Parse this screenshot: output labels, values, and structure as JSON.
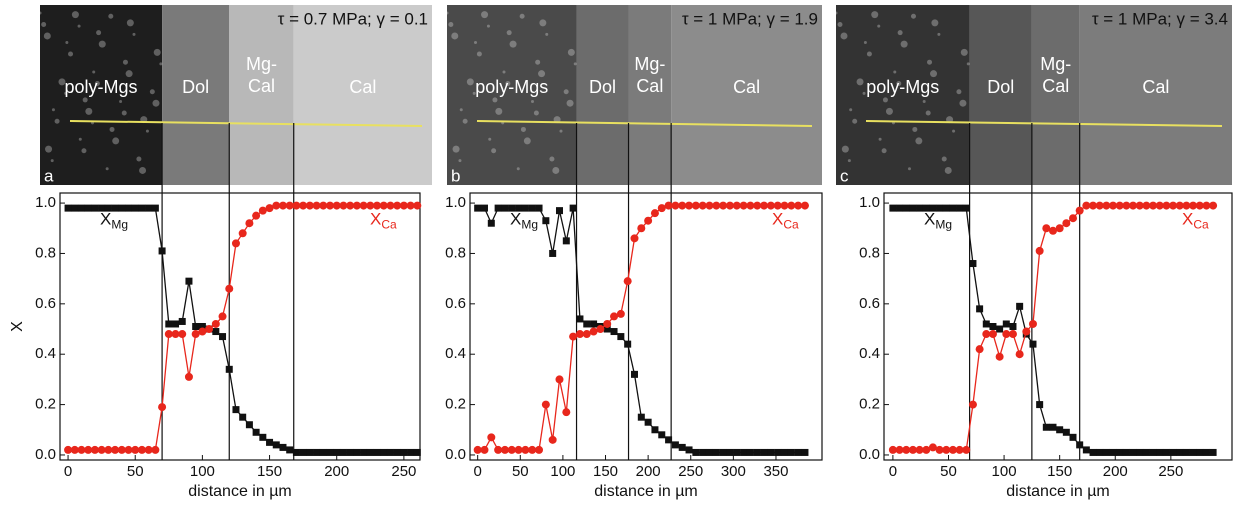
{
  "images": [
    {
      "label": "a",
      "conditions": "τ = 0.7 MPa; γ = 0.1",
      "phases": [
        [
          "poly-Mgs"
        ],
        [
          "Dol"
        ],
        [
          "Mg-",
          "Cal"
        ],
        [
          "Cal"
        ]
      ]
    },
    {
      "label": "b",
      "conditions": "τ = 1 MPa; γ = 1.9",
      "phases": [
        [
          "poly-Mgs"
        ],
        [
          "Dol"
        ],
        [
          "Mg-",
          "Cal"
        ],
        [
          "Cal"
        ]
      ]
    },
    {
      "label": "c",
      "conditions": "τ = 1 MPa; γ = 3.4",
      "phases": [
        [
          "poly-Mgs"
        ],
        [
          "Dol"
        ],
        [
          "Mg-",
          "Cal"
        ],
        [
          "Cal"
        ]
      ]
    }
  ],
  "chart_data": [
    {
      "type": "line",
      "ylabel": "X",
      "xlabel": "distance in µm",
      "xlim": [
        -6,
        262
      ],
      "ylim": [
        -0.02,
        1.04
      ],
      "xticks": [
        0,
        50,
        100,
        150,
        200,
        250
      ],
      "yticks": [
        {
          "value": 0,
          "label": "0.0"
        },
        0.2,
        0.4,
        0.6,
        0.8,
        {
          "value": 1,
          "label": "1.0"
        }
      ],
      "boundaries": [
        70,
        120,
        168
      ],
      "x": [
        0,
        5,
        10,
        15,
        20,
        25,
        30,
        35,
        40,
        45,
        50,
        55,
        60,
        65,
        70,
        75,
        80,
        85,
        90,
        95,
        100,
        105,
        110,
        115,
        120,
        125,
        130,
        135,
        140,
        145,
        150,
        155,
        160,
        165,
        170,
        175,
        180,
        185,
        190,
        195,
        200,
        205,
        210,
        215,
        220,
        225,
        230,
        235,
        240,
        245,
        250,
        255,
        260
      ],
      "series": [
        {
          "name": "XMg",
          "color": "#111111",
          "marker": "square",
          "values": [
            0.98,
            0.98,
            0.98,
            0.98,
            0.98,
            0.98,
            0.98,
            0.98,
            0.98,
            0.98,
            0.98,
            0.98,
            0.98,
            0.98,
            0.81,
            0.52,
            0.52,
            0.53,
            0.69,
            0.51,
            0.51,
            0.5,
            0.49,
            0.47,
            0.34,
            0.18,
            0.15,
            0.12,
            0.09,
            0.07,
            0.05,
            0.04,
            0.03,
            0.02,
            0.01,
            0.01,
            0.01,
            0.01,
            0.01,
            0.01,
            0.01,
            0.01,
            0.01,
            0.01,
            0.01,
            0.01,
            0.01,
            0.01,
            0.01,
            0.01,
            0.01,
            0.01,
            0.01
          ]
        },
        {
          "name": "XCa",
          "color": "#e8271c",
          "marker": "circle",
          "values": [
            0.02,
            0.02,
            0.02,
            0.02,
            0.02,
            0.02,
            0.02,
            0.02,
            0.02,
            0.02,
            0.02,
            0.02,
            0.02,
            0.02,
            0.19,
            0.48,
            0.48,
            0.48,
            0.31,
            0.48,
            0.49,
            0.5,
            0.52,
            0.55,
            0.66,
            0.84,
            0.88,
            0.92,
            0.95,
            0.97,
            0.98,
            0.99,
            0.99,
            0.99,
            0.99,
            0.99,
            0.99,
            0.99,
            0.99,
            0.99,
            0.99,
            0.99,
            0.99,
            0.99,
            0.99,
            0.99,
            0.99,
            0.99,
            0.99,
            0.99,
            0.99,
            0.99,
            0.99
          ]
        }
      ]
    },
    {
      "type": "line",
      "xlabel": "distance in µm",
      "xlim": [
        -9,
        404
      ],
      "ylim": [
        -0.02,
        1.04
      ],
      "xticks": [
        0,
        50,
        100,
        150,
        200,
        250,
        300,
        350
      ],
      "yticks": [
        {
          "value": 0,
          "label": "0.0"
        },
        0.2,
        0.4,
        0.6,
        0.8,
        {
          "value": 1,
          "label": "1.0"
        }
      ],
      "boundaries": [
        116,
        177,
        227
      ],
      "x": [
        0,
        8,
        16,
        24,
        32,
        40,
        48,
        56,
        64,
        72,
        80,
        88,
        96,
        104,
        112,
        120,
        128,
        136,
        144,
        152,
        160,
        168,
        176,
        184,
        192,
        200,
        208,
        216,
        224,
        232,
        240,
        248,
        256,
        264,
        272,
        280,
        288,
        296,
        304,
        312,
        320,
        328,
        336,
        344,
        352,
        360,
        368,
        376,
        384
      ],
      "series": [
        {
          "name": "XMg",
          "color": "#111111",
          "marker": "square",
          "values": [
            0.98,
            0.98,
            0.92,
            0.98,
            0.98,
            0.98,
            0.98,
            0.98,
            0.98,
            0.98,
            0.93,
            0.8,
            0.97,
            0.85,
            0.98,
            0.54,
            0.52,
            0.52,
            0.51,
            0.5,
            0.49,
            0.47,
            0.44,
            0.32,
            0.15,
            0.13,
            0.1,
            0.08,
            0.06,
            0.04,
            0.03,
            0.02,
            0.01,
            0.01,
            0.01,
            0.01,
            0.01,
            0.01,
            0.01,
            0.01,
            0.01,
            0.01,
            0.01,
            0.01,
            0.01,
            0.01,
            0.01,
            0.01,
            0.01
          ]
        },
        {
          "name": "XCa",
          "color": "#e8271c",
          "marker": "circle",
          "values": [
            0.02,
            0.02,
            0.07,
            0.02,
            0.02,
            0.02,
            0.02,
            0.02,
            0.02,
            0.02,
            0.2,
            0.06,
            0.3,
            0.17,
            0.47,
            0.48,
            0.48,
            0.49,
            0.5,
            0.52,
            0.55,
            0.56,
            0.69,
            0.86,
            0.9,
            0.93,
            0.96,
            0.98,
            0.99,
            0.99,
            0.99,
            0.99,
            0.99,
            0.99,
            0.99,
            0.99,
            0.99,
            0.99,
            0.99,
            0.99,
            0.99,
            0.99,
            0.99,
            0.99,
            0.99,
            0.99,
            0.99,
            0.99,
            0.99
          ]
        }
      ]
    },
    {
      "type": "line",
      "xlabel": "distance in µm",
      "xlim": [
        -8,
        305
      ],
      "ylim": [
        -0.02,
        1.04
      ],
      "xticks": [
        0,
        50,
        100,
        150,
        200,
        250
      ],
      "yticks": [
        {
          "value": 0,
          "label": "0.0"
        },
        0.2,
        0.4,
        0.6,
        0.8,
        {
          "value": 1,
          "label": "1.0"
        }
      ],
      "boundaries": [
        69,
        125,
        168
      ],
      "x": [
        0,
        6,
        12,
        18,
        24,
        30,
        36,
        42,
        48,
        54,
        60,
        66,
        72,
        78,
        84,
        90,
        96,
        102,
        108,
        114,
        120,
        126,
        132,
        138,
        144,
        150,
        156,
        162,
        168,
        174,
        180,
        186,
        192,
        198,
        204,
        210,
        216,
        222,
        228,
        234,
        240,
        246,
        252,
        258,
        264,
        270,
        276,
        282,
        288
      ],
      "series": [
        {
          "name": "XMg",
          "color": "#111111",
          "marker": "square",
          "values": [
            0.98,
            0.98,
            0.98,
            0.98,
            0.98,
            0.98,
            0.98,
            0.98,
            0.98,
            0.98,
            0.98,
            0.98,
            0.76,
            0.58,
            0.52,
            0.51,
            0.5,
            0.52,
            0.51,
            0.59,
            0.48,
            0.44,
            0.2,
            0.11,
            0.11,
            0.1,
            0.09,
            0.07,
            0.04,
            0.02,
            0.01,
            0.01,
            0.01,
            0.01,
            0.01,
            0.01,
            0.01,
            0.01,
            0.01,
            0.01,
            0.01,
            0.01,
            0.01,
            0.01,
            0.01,
            0.01,
            0.01,
            0.01,
            0.01
          ]
        },
        {
          "name": "XCa",
          "color": "#e8271c",
          "marker": "circle",
          "values": [
            0.02,
            0.02,
            0.02,
            0.02,
            0.02,
            0.02,
            0.03,
            0.02,
            0.02,
            0.02,
            0.02,
            0.02,
            0.2,
            0.42,
            0.48,
            0.48,
            0.39,
            0.48,
            0.48,
            0.4,
            0.49,
            0.52,
            0.81,
            0.9,
            0.89,
            0.9,
            0.92,
            0.94,
            0.97,
            0.99,
            0.99,
            0.99,
            0.99,
            0.99,
            0.99,
            0.99,
            0.99,
            0.99,
            0.99,
            0.99,
            0.99,
            0.99,
            0.99,
            0.99,
            0.99,
            0.99,
            0.99,
            0.99,
            0.99
          ]
        }
      ]
    }
  ]
}
